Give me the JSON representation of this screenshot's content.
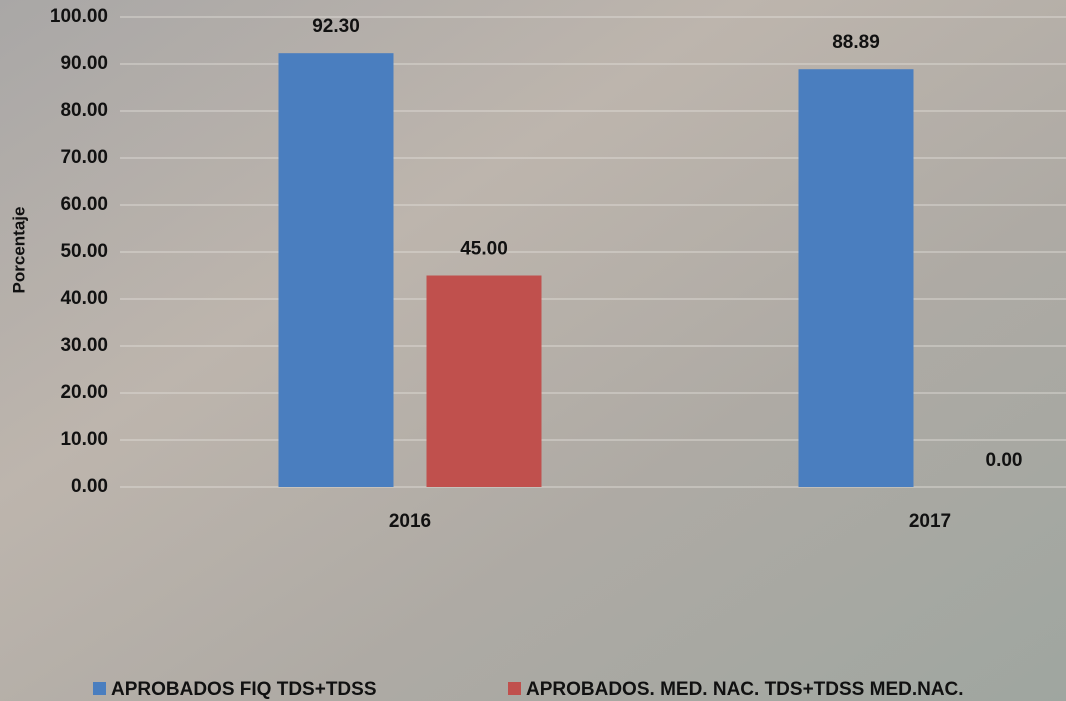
{
  "chart_data": {
    "type": "bar",
    "y_label": "Porcentaje",
    "categories": [
      "2016",
      "2017"
    ],
    "series": [
      {
        "name": "APROBADOS FIQ TDS+TDSS",
        "color": "#4a7ebf",
        "values": [
          92.3,
          88.89
        ],
        "value_labels": [
          "92.30",
          "88.89"
        ]
      },
      {
        "name": "APROBADOS. MED. NAC. TDS+TDSS MED.NAC.",
        "color": "#c0504d",
        "values": [
          45,
          0
        ],
        "value_labels": [
          "45.00",
          "0.00"
        ]
      }
    ],
    "ylim": [
      0,
      100
    ],
    "yticks": [
      {
        "value": 0,
        "label": "0.00"
      },
      {
        "value": 10,
        "label": "10.00"
      },
      {
        "value": 20,
        "label": "20.00"
      },
      {
        "value": 30,
        "label": "30.00"
      },
      {
        "value": 40,
        "label": "40.00"
      },
      {
        "value": 50,
        "label": "50.00"
      },
      {
        "value": 60,
        "label": "60.00"
      },
      {
        "value": 70,
        "label": "70.00"
      },
      {
        "value": 80,
        "label": "80.00"
      },
      {
        "value": 90,
        "label": "90.00"
      },
      {
        "value": 100,
        "label": "100.00"
      }
    ],
    "grid": true,
    "legend": "bottom"
  }
}
